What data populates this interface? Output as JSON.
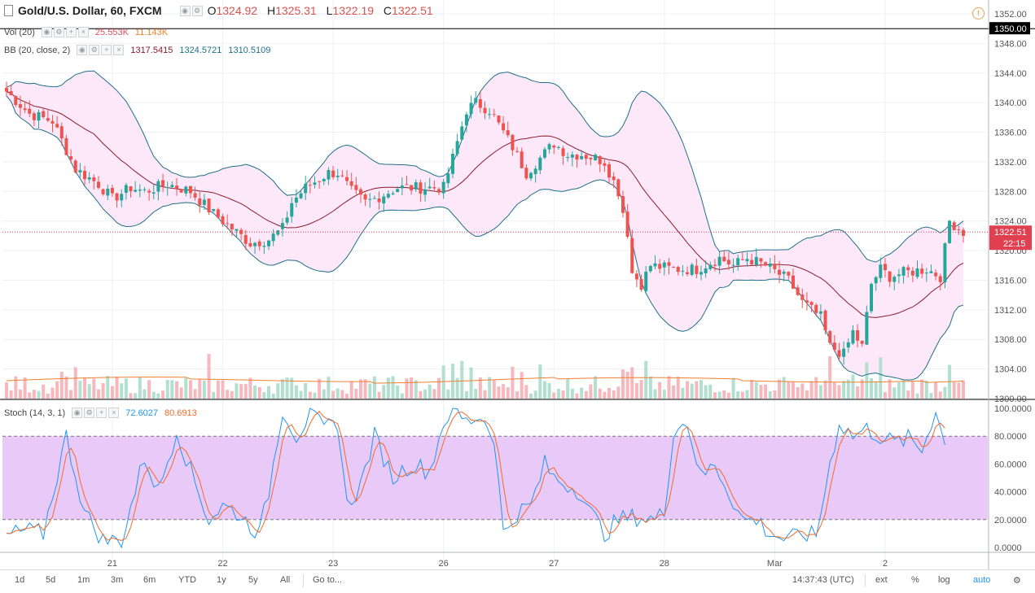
{
  "header": {
    "symbol": "Gold/U.S. Dollar, 60, FXCM",
    "open_label": "O",
    "open": "1324.92",
    "high_label": "H",
    "high": "1325.31",
    "low_label": "L",
    "low": "1322.19",
    "close_label": "C",
    "close": "1322.51"
  },
  "indicators": {
    "vol": {
      "label": "Vol (20)",
      "v1": "25.553K",
      "v2": "11.143K"
    },
    "bb": {
      "label": "BB (20, close, 2)",
      "v1": "1317.5415",
      "v2": "1324.5721",
      "v3": "1310.5109"
    },
    "stoch": {
      "label": "Stoch (14, 3, 1)",
      "k": "72.6027",
      "d": "80.6913"
    }
  },
  "price_axis": {
    "ticks": [
      "1352.00",
      "1350.00",
      "1348.00",
      "1344.00",
      "1340.00",
      "1336.00",
      "1332.00",
      "1328.00",
      "1324.00",
      "1320.00",
      "1316.00",
      "1312.00",
      "1308.00",
      "1304.00",
      "1300.00"
    ],
    "tick_values": [
      1352,
      1350,
      1348,
      1344,
      1340,
      1336,
      1332,
      1328,
      1324,
      1320,
      1316,
      1312,
      1308,
      1304,
      1300
    ],
    "marked_level": "1350.00",
    "last_price": "1322.51",
    "countdown": "22:15"
  },
  "stoch_axis": {
    "ticks": [
      "100.0000",
      "80.0000",
      "60.0000",
      "40.0000",
      "20.0000",
      "0.0000"
    ],
    "tick_values": [
      100,
      80,
      60,
      40,
      20,
      0
    ]
  },
  "time_axis": {
    "labels": [
      {
        "text": "21",
        "idx": 23
      },
      {
        "text": "22",
        "idx": 47
      },
      {
        "text": "23",
        "idx": 71
      },
      {
        "text": "26",
        "idx": 95
      },
      {
        "text": "27",
        "idx": 119
      },
      {
        "text": "28",
        "idx": 143
      },
      {
        "text": "Mar",
        "idx": 167
      },
      {
        "text": "2",
        "idx": 191
      }
    ]
  },
  "footer": {
    "timeframes": [
      "1d",
      "5d",
      "1m",
      "3m",
      "6m",
      "YTD",
      "1y",
      "5y",
      "All"
    ],
    "goto": "Go to...",
    "clock": "14:37:43 (UTC)",
    "ext": "ext",
    "percent": "%",
    "log": "log",
    "auto": "auto"
  },
  "colors": {
    "up": "#26a69a",
    "down": "#ef5350",
    "up_vol": "#b2dfcf",
    "down_vol": "#f7b8bd",
    "bb_band": "#1e6f8a",
    "bb_mid": "#8b1a2b",
    "bb_fill": "#fce8f8",
    "stoch_k": "#2196f3",
    "stoch_d": "#ef6c2c",
    "stoch_zone": "#e8c9f8",
    "last_price": "#e04050",
    "auto": "#2196f3"
  },
  "chart_data": {
    "type": "candlestick",
    "closes_anchor": [
      [
        0,
        1341.5
      ],
      [
        5,
        1338.5
      ],
      [
        10,
        1337.5
      ],
      [
        15,
        1331
      ],
      [
        20,
        1329
      ],
      [
        23,
        1327
      ],
      [
        27,
        1328.5
      ],
      [
        30,
        1328
      ],
      [
        35,
        1329
      ],
      [
        40,
        1328
      ],
      [
        45,
        1325
      ],
      [
        50,
        1322.5
      ],
      [
        53,
        1321
      ],
      [
        57,
        1321.5
      ],
      [
        60,
        1323
      ],
      [
        62,
        1326.5
      ],
      [
        65,
        1328.5
      ],
      [
        70,
        1330.5
      ],
      [
        72,
        1330.5
      ],
      [
        75,
        1328
      ],
      [
        78,
        1326.5
      ],
      [
        80,
        1327
      ],
      [
        85,
        1328.5
      ],
      [
        90,
        1328.5
      ],
      [
        95,
        1328.5
      ],
      [
        97,
        1332.5
      ],
      [
        100,
        1339
      ],
      [
        102,
        1340
      ],
      [
        105,
        1339
      ],
      [
        108,
        1336
      ],
      [
        110,
        1334
      ],
      [
        113,
        1330.5
      ],
      [
        116,
        1332.5
      ],
      [
        119,
        1334.5
      ],
      [
        122,
        1333
      ],
      [
        125,
        1333
      ],
      [
        128,
        1332.5
      ],
      [
        130,
        1332
      ],
      [
        133,
        1328
      ],
      [
        135,
        1322.5
      ],
      [
        136,
        1317
      ],
      [
        138,
        1315.5
      ],
      [
        140,
        1318
      ],
      [
        145,
        1317.5
      ],
      [
        150,
        1317.5
      ],
      [
        155,
        1319
      ],
      [
        158,
        1318
      ],
      [
        161,
        1319
      ],
      [
        165,
        1318
      ],
      [
        170,
        1316
      ],
      [
        173,
        1313
      ],
      [
        177,
        1311
      ],
      [
        179,
        1307
      ],
      [
        182,
        1306
      ],
      [
        184,
        1309
      ],
      [
        186,
        1307
      ],
      [
        188,
        1315.5
      ],
      [
        190,
        1317.5
      ],
      [
        192,
        1316.5
      ],
      [
        195,
        1317
      ],
      [
        200,
        1317.5
      ],
      [
        203,
        1316.5
      ],
      [
        205,
        1324
      ],
      [
        208,
        1322.5
      ]
    ],
    "n_candles": 209,
    "ylim": [
      1300,
      1352
    ],
    "stoch_anchor_k": [
      [
        0,
        8
      ],
      [
        4,
        12
      ],
      [
        8,
        10
      ],
      [
        13,
        80
      ],
      [
        17,
        25
      ],
      [
        21,
        5
      ],
      [
        25,
        5
      ],
      [
        30,
        65
      ],
      [
        33,
        40
      ],
      [
        37,
        85
      ],
      [
        40,
        55
      ],
      [
        44,
        20
      ],
      [
        47,
        30
      ],
      [
        50,
        25
      ],
      [
        55,
        10
      ],
      [
        57,
        40
      ],
      [
        60,
        100
      ],
      [
        63,
        80
      ],
      [
        66,
        95
      ],
      [
        69,
        85
      ],
      [
        72,
        90
      ],
      [
        74,
        30
      ],
      [
        77,
        45
      ],
      [
        80,
        80
      ],
      [
        84,
        50
      ],
      [
        88,
        60
      ],
      [
        92,
        55
      ],
      [
        95,
        90
      ],
      [
        97,
        100
      ],
      [
        100,
        90
      ],
      [
        103,
        95
      ],
      [
        106,
        80
      ],
      [
        108,
        10
      ],
      [
        111,
        25
      ],
      [
        114,
        30
      ],
      [
        117,
        60
      ],
      [
        119,
        50
      ],
      [
        122,
        45
      ],
      [
        125,
        40
      ],
      [
        127,
        25
      ],
      [
        130,
        10
      ],
      [
        133,
        20
      ],
      [
        137,
        22
      ],
      [
        141,
        20
      ],
      [
        143,
        25
      ],
      [
        145,
        85
      ],
      [
        148,
        90
      ],
      [
        151,
        50
      ],
      [
        154,
        60
      ],
      [
        157,
        40
      ],
      [
        160,
        20
      ],
      [
        163,
        20
      ],
      [
        166,
        10
      ],
      [
        170,
        5
      ],
      [
        173,
        10
      ],
      [
        176,
        8
      ],
      [
        179,
        60
      ],
      [
        181,
        90
      ],
      [
        184,
        80
      ],
      [
        187,
        85
      ],
      [
        190,
        80
      ],
      [
        193,
        75
      ],
      [
        196,
        78
      ],
      [
        199,
        70
      ],
      [
        202,
        100
      ],
      [
        204,
        72.6
      ]
    ]
  }
}
